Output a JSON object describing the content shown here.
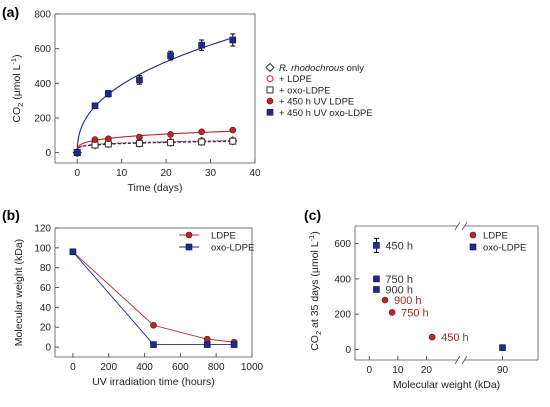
{
  "chart_data": [
    {
      "type": "scatter",
      "panel_label": "(a)",
      "xlabel": "Time (days)",
      "ylabel": "CO2 (µmol L-1)",
      "ylabel_parts": {
        "base": "CO",
        "sub": "2",
        "unit": " (µmol L",
        "sup": "-1",
        "close": ")"
      },
      "xlim": [
        -5,
        40
      ],
      "ylim": [
        -60,
        800
      ],
      "xticks": [
        0,
        10,
        20,
        30,
        40
      ],
      "yticks": [
        0,
        200,
        400,
        600,
        800
      ],
      "x": [
        0,
        4,
        7,
        14,
        21,
        28,
        35
      ],
      "legend_position": "center-right",
      "series": [
        {
          "name": "R. rhodochrous only",
          "name_italic": "R. rhodochrous",
          "name_rest": " only",
          "marker": "diamond-open",
          "color": "#333333",
          "values": [
            0,
            45,
            52,
            55,
            60,
            65,
            68
          ]
        },
        {
          "name": "+ LDPE",
          "marker": "circle-open",
          "color": "#b8272c",
          "values": [
            0,
            47,
            54,
            58,
            62,
            67,
            70
          ]
        },
        {
          "name": "+ oxo-LDPE",
          "marker": "square-open",
          "color": "#333333",
          "values": [
            0,
            44,
            50,
            53,
            58,
            62,
            66
          ]
        },
        {
          "name": "+ 450 h UV LDPE",
          "marker": "circle",
          "color": "#b8272c",
          "values": [
            0,
            75,
            80,
            90,
            105,
            120,
            130
          ],
          "errors": [
            5,
            8,
            8,
            8,
            8,
            8,
            8
          ]
        },
        {
          "name": "+ 450 h UV oxo-LDPE",
          "marker": "square",
          "color": "#1f2a8c",
          "values": [
            0,
            270,
            340,
            420,
            560,
            620,
            650
          ],
          "errors": [
            10,
            15,
            18,
            25,
            25,
            30,
            35
          ]
        }
      ]
    },
    {
      "type": "line",
      "panel_label": "(b)",
      "xlabel": "UV irradiation time (hours)",
      "ylabel": "Molecular weight (kDa)",
      "xlim": [
        -100,
        1000
      ],
      "ylim": [
        -10,
        120
      ],
      "xticks": [
        0,
        200,
        400,
        600,
        800,
        1000
      ],
      "yticks": [
        0,
        20,
        40,
        60,
        80,
        100,
        120
      ],
      "x": [
        0,
        450,
        750,
        900
      ],
      "legend_position": "top-right",
      "series": [
        {
          "name": "LDPE",
          "marker": "circle",
          "color": "#b8272c",
          "values": [
            96,
            22,
            8,
            5
          ]
        },
        {
          "name": "oxo-LDPE",
          "marker": "square",
          "color": "#1f2a8c",
          "values": [
            96,
            2.5,
            2.5,
            2.5
          ]
        }
      ]
    },
    {
      "type": "scatter",
      "panel_label": "(c)",
      "xlabel": "Molecular weight (kDa)",
      "ylabel": "CO2 at 35 days (µmol L-1)",
      "ylabel_parts": {
        "base": "CO",
        "sub": "2",
        "unit": " at 35 days (µmol L",
        "sup": "-1",
        "close": ")"
      },
      "xlim": [
        -5,
        100
      ],
      "axis_break_at": 30,
      "ylim": [
        -60,
        700
      ],
      "xticks": [
        0,
        10,
        20,
        90
      ],
      "yticks": [
        0,
        200,
        400,
        600
      ],
      "legend_position": "top-right",
      "series": [
        {
          "name": "LDPE",
          "marker": "circle",
          "color": "#b8272c",
          "points": [
            {
              "x": 5.5,
              "y": 280,
              "label": "900 h"
            },
            {
              "x": 8,
              "y": 210,
              "label": "750 h"
            },
            {
              "x": 22,
              "y": 70,
              "label": "450 h"
            }
          ]
        },
        {
          "name": "oxo-LDPE",
          "marker": "square",
          "color": "#1f2a8c",
          "points": [
            {
              "x": 2.5,
              "y": 590,
              "label": "450 h",
              "error": 40
            },
            {
              "x": 2.5,
              "y": 400,
              "label": "750 h"
            },
            {
              "x": 2.5,
              "y": 340,
              "label": "900 h"
            },
            {
              "x": 90,
              "y": 10,
              "label": "",
              "error": 10
            }
          ]
        }
      ]
    }
  ]
}
